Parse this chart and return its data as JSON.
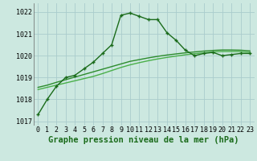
{
  "xlabel": "Graphe pression niveau de la mer (hPa)",
  "ylabel": "",
  "bg_color": "#cce8e0",
  "grid_color": "#aacccc",
  "line_color_main": "#1a6b1a",
  "line_color_smooth1": "#2d8c2d",
  "line_color_smooth2": "#4ab04a",
  "ylim": [
    1016.8,
    1022.4
  ],
  "yticks": [
    1017,
    1018,
    1019,
    1020,
    1021,
    1022
  ],
  "xticks": [
    0,
    1,
    2,
    3,
    4,
    5,
    6,
    7,
    8,
    9,
    10,
    11,
    12,
    13,
    14,
    15,
    16,
    17,
    18,
    19,
    20,
    21,
    22,
    23
  ],
  "hours": [
    0,
    1,
    2,
    3,
    4,
    5,
    6,
    7,
    8,
    9,
    10,
    11,
    12,
    13,
    14,
    15,
    16,
    17,
    18,
    19,
    20,
    21,
    22,
    23
  ],
  "pressure_main": [
    1017.3,
    1018.0,
    1018.6,
    1019.0,
    1019.1,
    1019.4,
    1019.7,
    1020.1,
    1020.5,
    1021.85,
    1021.95,
    1021.8,
    1021.65,
    1021.65,
    1021.05,
    1020.7,
    1020.25,
    1020.0,
    1020.1,
    1020.15,
    1020.0,
    1020.05,
    1020.1,
    1020.1
  ],
  "pressure_smooth1": [
    1018.55,
    1018.65,
    1018.78,
    1018.9,
    1019.02,
    1019.14,
    1019.26,
    1019.38,
    1019.5,
    1019.62,
    1019.74,
    1019.82,
    1019.9,
    1019.97,
    1020.03,
    1020.08,
    1020.13,
    1020.17,
    1020.21,
    1020.24,
    1020.26,
    1020.26,
    1020.25,
    1020.22
  ],
  "pressure_smooth2": [
    1018.45,
    1018.55,
    1018.65,
    1018.75,
    1018.85,
    1018.95,
    1019.05,
    1019.18,
    1019.32,
    1019.46,
    1019.58,
    1019.68,
    1019.77,
    1019.85,
    1019.92,
    1019.98,
    1020.04,
    1020.09,
    1020.13,
    1020.17,
    1020.19,
    1020.19,
    1020.18,
    1020.15
  ],
  "xlabel_fontsize": 7.5,
  "tick_fontsize": 6.0
}
